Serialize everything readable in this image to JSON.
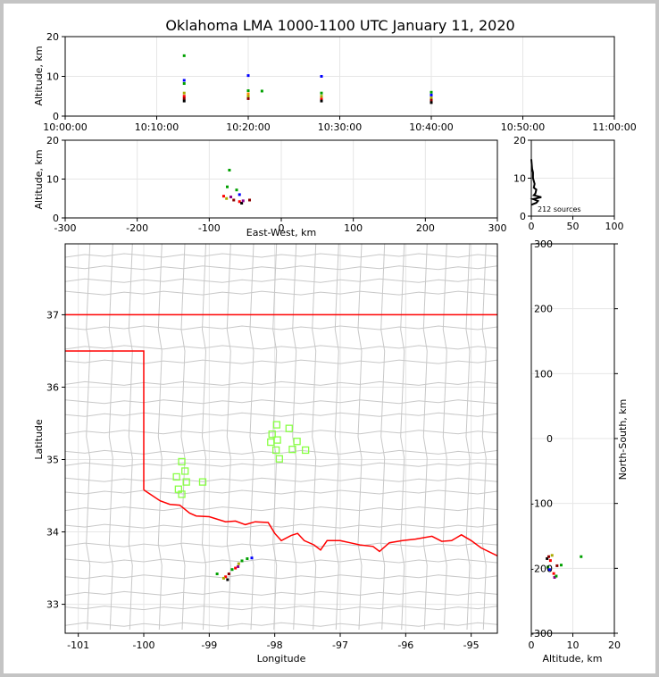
{
  "title": "Oklahoma LMA 1000-1100 UTC January 11, 2020",
  "colors": {
    "state_border": "#ff0000",
    "county_lines": "#c8c8c8",
    "markers": "#88ff44",
    "grid": "#e6e6e6"
  },
  "chart_data": [
    {
      "id": "time_altitude",
      "type": "scatter",
      "ylabel": "Altitude, km",
      "xlim": [
        "10:00:00",
        "11:00:00"
      ],
      "ylim": [
        0,
        20
      ],
      "x_ticks": [
        "10:00:00",
        "10:10:00",
        "10:20:00",
        "10:30:00",
        "10:40:00",
        "10:50:00",
        "11:00:00"
      ],
      "y_ticks": [
        0,
        10,
        20
      ],
      "points": [
        {
          "x": "10:13:00",
          "y": 15.2,
          "color": "#00a000"
        },
        {
          "x": "10:13:00",
          "y": 9.0,
          "color": "#0000ff"
        },
        {
          "x": "10:13:00",
          "y": 8.2,
          "color": "#00a000"
        },
        {
          "x": "10:13:00",
          "y": 5.8,
          "color": "#aaaa00"
        },
        {
          "x": "10:13:00",
          "y": 5.0,
          "color": "#ff0000"
        },
        {
          "x": "10:13:00",
          "y": 4.4,
          "color": "#8b0000"
        },
        {
          "x": "10:13:00",
          "y": 3.8,
          "color": "#000000"
        },
        {
          "x": "10:20:00",
          "y": 10.2,
          "color": "#0000ff"
        },
        {
          "x": "10:20:00",
          "y": 6.4,
          "color": "#00a000"
        },
        {
          "x": "10:20:00",
          "y": 5.6,
          "color": "#ff8800"
        },
        {
          "x": "10:20:00",
          "y": 5.0,
          "color": "#aaaa00"
        },
        {
          "x": "10:20:00",
          "y": 4.4,
          "color": "#8b0000"
        },
        {
          "x": "10:21:30",
          "y": 6.3,
          "color": "#00a000"
        },
        {
          "x": "10:28:00",
          "y": 10.0,
          "color": "#0000ff"
        },
        {
          "x": "10:28:00",
          "y": 5.8,
          "color": "#00a000"
        },
        {
          "x": "10:28:00",
          "y": 5.0,
          "color": "#aaaa00"
        },
        {
          "x": "10:28:00",
          "y": 4.3,
          "color": "#ff0000"
        },
        {
          "x": "10:28:00",
          "y": 3.8,
          "color": "#000000"
        },
        {
          "x": "10:40:00",
          "y": 6.0,
          "color": "#00a000"
        },
        {
          "x": "10:40:00",
          "y": 5.3,
          "color": "#0000ff"
        },
        {
          "x": "10:40:00",
          "y": 4.6,
          "color": "#aaaa00"
        },
        {
          "x": "10:40:00",
          "y": 4.0,
          "color": "#8b0000"
        },
        {
          "x": "10:40:00",
          "y": 3.4,
          "color": "#000000"
        }
      ]
    },
    {
      "id": "ew_altitude",
      "type": "scatter",
      "xlabel": "East-West, km",
      "ylabel": "Altitude, km",
      "xlim": [
        -300,
        300
      ],
      "ylim": [
        0,
        20
      ],
      "x_ticks": [
        -300,
        -200,
        -100,
        0,
        100,
        200,
        300
      ],
      "y_ticks": [
        0,
        10,
        20
      ],
      "points": [
        {
          "x": -72,
          "y": 12.3,
          "color": "#00a000"
        },
        {
          "x": -75,
          "y": 8.0,
          "color": "#00a000"
        },
        {
          "x": -62,
          "y": 7.2,
          "color": "#00a000"
        },
        {
          "x": -58,
          "y": 6.0,
          "color": "#0000ff"
        },
        {
          "x": -80,
          "y": 5.6,
          "color": "#ff0000"
        },
        {
          "x": -76,
          "y": 5.0,
          "color": "#aaaa00"
        },
        {
          "x": -70,
          "y": 5.4,
          "color": "#8b008b"
        },
        {
          "x": -66,
          "y": 4.6,
          "color": "#8b0000"
        },
        {
          "x": -58,
          "y": 4.2,
          "color": "#ff0000"
        },
        {
          "x": -55,
          "y": 3.8,
          "color": "#000000"
        },
        {
          "x": -53,
          "y": 4.4,
          "color": "#8b008b"
        },
        {
          "x": -44,
          "y": 4.6,
          "color": "#8b0000"
        }
      ]
    },
    {
      "id": "altitude_histogram",
      "type": "line",
      "annotation": "212 sources",
      "xlim": [
        0,
        100
      ],
      "ylim": [
        0,
        20
      ],
      "x_ticks": [
        0,
        50,
        100
      ],
      "y_ticks": [
        0,
        10,
        20
      ],
      "x": [
        0,
        1,
        2,
        2,
        4,
        3,
        6,
        5,
        3,
        12,
        2,
        8,
        6,
        0
      ],
      "y": [
        15.0,
        12.5,
        11.5,
        10.0,
        8.5,
        7.5,
        7.0,
        6.0,
        5.5,
        5.0,
        4.5,
        4.0,
        3.5,
        3.0
      ]
    },
    {
      "id": "plan_view",
      "type": "scatter",
      "xlabel": "Longitude",
      "ylabel": "Latitude",
      "xlim": [
        -101.2,
        -94.6
      ],
      "ylim": [
        32.6,
        37.98
      ],
      "x_ticks": [
        -101,
        -100,
        -99,
        -98,
        -97,
        -96,
        -95
      ],
      "y_ticks": [
        33,
        34,
        35,
        36,
        37
      ],
      "stations": [
        {
          "lon": -97.97,
          "lat": 35.48
        },
        {
          "lon": -97.78,
          "lat": 35.43
        },
        {
          "lon": -98.04,
          "lat": 35.35
        },
        {
          "lon": -97.96,
          "lat": 35.27
        },
        {
          "lon": -98.06,
          "lat": 35.24
        },
        {
          "lon": -97.66,
          "lat": 35.25
        },
        {
          "lon": -97.73,
          "lat": 35.14
        },
        {
          "lon": -97.98,
          "lat": 35.13
        },
        {
          "lon": -97.53,
          "lat": 35.13
        },
        {
          "lon": -97.93,
          "lat": 35.01
        },
        {
          "lon": -99.42,
          "lat": 34.97
        },
        {
          "lon": -99.37,
          "lat": 34.84
        },
        {
          "lon": -99.5,
          "lat": 34.76
        },
        {
          "lon": -99.35,
          "lat": 34.69
        },
        {
          "lon": -99.1,
          "lat": 34.69
        },
        {
          "lon": -99.47,
          "lat": 34.59
        },
        {
          "lon": -99.42,
          "lat": 34.52
        }
      ],
      "sources": [
        {
          "lon": -98.42,
          "lat": 33.63,
          "color": "#00a000"
        },
        {
          "lon": -98.35,
          "lat": 33.64,
          "color": "#0000ff"
        },
        {
          "lon": -98.5,
          "lat": 33.6,
          "color": "#00a000"
        },
        {
          "lon": -98.55,
          "lat": 33.56,
          "color": "#aaaa00"
        },
        {
          "lon": -98.6,
          "lat": 33.5,
          "color": "#ff0000"
        },
        {
          "lon": -98.65,
          "lat": 33.48,
          "color": "#00a000"
        },
        {
          "lon": -98.7,
          "lat": 33.42,
          "color": "#8b0000"
        },
        {
          "lon": -98.75,
          "lat": 33.38,
          "color": "#ff0000"
        },
        {
          "lon": -98.72,
          "lat": 33.34,
          "color": "#000000"
        },
        {
          "lon": -98.88,
          "lat": 33.42,
          "color": "#00a000"
        },
        {
          "lon": -98.78,
          "lat": 33.36,
          "color": "#aaaa00"
        },
        {
          "lon": -98.56,
          "lat": 33.52,
          "color": "#8b008b"
        }
      ]
    },
    {
      "id": "altitude_ns",
      "type": "scatter",
      "xlabel": "Altitude, km",
      "ylabel": "North-South, km",
      "xlim": [
        0,
        20
      ],
      "ylim": [
        -300,
        300
      ],
      "x_ticks": [
        0,
        10,
        20
      ],
      "y_ticks": [
        -300,
        -200,
        -100,
        0,
        100,
        200,
        300
      ],
      "points": [
        {
          "x": 3.8,
          "y": -185,
          "color": "#000000"
        },
        {
          "x": 4.2,
          "y": -182,
          "color": "#8b0000"
        },
        {
          "x": 4.6,
          "y": -188,
          "color": "#ff0000"
        },
        {
          "x": 5.0,
          "y": -180,
          "color": "#aaaa00"
        },
        {
          "x": 4.0,
          "y": -198,
          "color": "#00a000"
        },
        {
          "x": 4.4,
          "y": -202,
          "color": "#0000ff"
        },
        {
          "x": 5.4,
          "y": -208,
          "color": "#ff0000"
        },
        {
          "x": 5.6,
          "y": -214,
          "color": "#8b008b"
        },
        {
          "x": 6.2,
          "y": -196,
          "color": "#8b0000"
        },
        {
          "x": 6.0,
          "y": -212,
          "color": "#00a000"
        },
        {
          "x": 7.2,
          "y": -195,
          "color": "#00a000"
        },
        {
          "x": 12.0,
          "y": -182,
          "color": "#00a000"
        }
      ]
    }
  ]
}
